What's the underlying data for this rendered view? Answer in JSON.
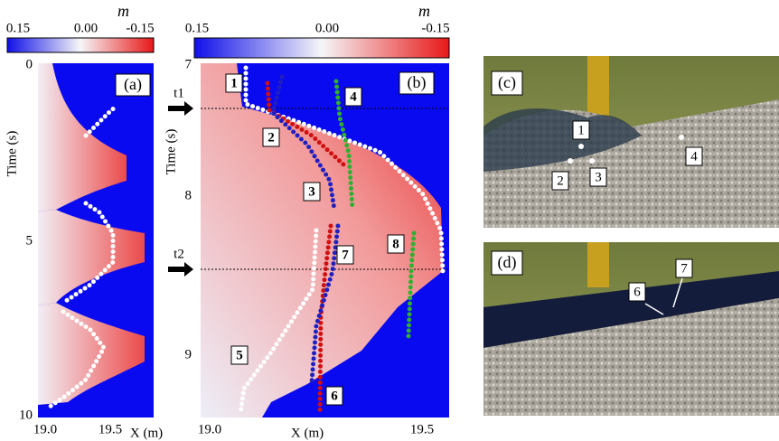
{
  "panel_a": {
    "label": "(a)",
    "colorbar": {
      "symbol": "m",
      "ticks": [
        "0.15",
        "0.00",
        "-0.15"
      ]
    },
    "y_axis": {
      "title": "Time (s)",
      "ticks": [
        "0",
        "5",
        "10"
      ]
    },
    "x_axis": {
      "title": "X (m)",
      "ticks": [
        "19.0",
        "19.5"
      ]
    }
  },
  "panel_b": {
    "label": "(b)",
    "colorbar": {
      "symbol": "m",
      "ticks": [
        "0.15",
        "0.00",
        "-0.15"
      ]
    },
    "y_axis": {
      "title": "Time (s)",
      "ticks": [
        "7",
        "8",
        "9"
      ]
    },
    "x_axis": {
      "title": "X (m)",
      "ticks": [
        "19.0",
        "19.5"
      ]
    },
    "markers": [
      "t1",
      "t2"
    ],
    "tracks": [
      "1",
      "2",
      "3",
      "4",
      "5",
      "6",
      "7",
      "8"
    ]
  },
  "panel_c": {
    "label": "(c)",
    "particles": [
      "1",
      "2",
      "3",
      "4"
    ]
  },
  "panel_d": {
    "label": "(d)",
    "particles": [
      "6",
      "7"
    ]
  }
}
